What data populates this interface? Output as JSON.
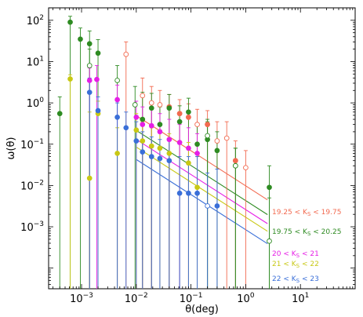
{
  "chart_data": {
    "type": "scatter",
    "xlabel": "θ(deg)",
    "ylabel": "ω(θ)",
    "xscale": "log",
    "yscale": "log",
    "xlim": [
      0.00025,
      100
    ],
    "ylim": [
      3.16e-05,
      200
    ],
    "x_ticks": [
      {
        "value": 0.001,
        "label": "10^-3"
      },
      {
        "value": 0.01,
        "label": "10^-2"
      },
      {
        "value": 0.1,
        "label": "10^-1"
      },
      {
        "value": 1,
        "label": "10^0"
      },
      {
        "value": 10,
        "label": "10^1"
      }
    ],
    "y_ticks": [
      {
        "value": 0.001,
        "label": "10^-3"
      },
      {
        "value": 0.01,
        "label": "10^-2"
      },
      {
        "value": 0.1,
        "label": "10^-1"
      },
      {
        "value": 1,
        "label": "10^0"
      },
      {
        "value": 10,
        "label": "10^1"
      },
      {
        "value": 100,
        "label": "10^2"
      }
    ],
    "legend_position": "lower-right, next to the fitted lines",
    "series": [
      {
        "name": "19.25 < K_S < 19.75",
        "color": "#f26a50",
        "marker": "open-circle",
        "points": [
          {
            "x": 0.0065,
            "y": 15,
            "err_up": 30
          },
          {
            "x": 0.013,
            "y": 1.5,
            "err_up": 4
          },
          {
            "x": 0.019,
            "y": 1.0,
            "err_up": 2.5
          },
          {
            "x": 0.027,
            "y": 0.9,
            "err_up": 2.0
          },
          {
            "x": 0.04,
            "y": 0.8,
            "err_up": 1.6
          },
          {
            "x": 0.062,
            "y": 0.55,
            "err_up": 1.2
          },
          {
            "x": 0.09,
            "y": 0.45,
            "err_up": 0.95
          },
          {
            "x": 0.13,
            "y": 0.3,
            "err_up": 0.7
          },
          {
            "x": 0.2,
            "y": 0.3,
            "err_up": 0.65
          },
          {
            "x": 0.3,
            "y": 0.12,
            "err_up": 0.35
          },
          {
            "x": 0.45,
            "y": 0.14,
            "err_up": 0.35
          },
          {
            "x": 0.65,
            "y": 0.04,
            "err_up": 0.12
          },
          {
            "x": 1.0,
            "y": 0.027,
            "err_up": 0.07
          }
        ],
        "filled_points": [
          {
            "x": 0.04,
            "y": 0.8
          },
          {
            "x": 0.062,
            "y": 0.55
          },
          {
            "x": 0.09,
            "y": 0.45
          },
          {
            "x": 0.2,
            "y": 0.3
          },
          {
            "x": 0.65,
            "y": 0.04
          }
        ],
        "fit": {
          "x_start": 0.01,
          "x_end": 2.5,
          "amplitude": 0.0098,
          "slope": -0.85
        }
      },
      {
        "name": "19.75 < K_S < 20.25",
        "color": "#2e8b22",
        "marker": "filled-circle",
        "points": [
          {
            "x": 0.0004,
            "y": 0.55,
            "err_up": 1.4
          },
          {
            "x": 0.00062,
            "y": 90,
            "err_up": 125
          },
          {
            "x": 0.00095,
            "y": 35,
            "err_up": 65
          },
          {
            "x": 0.0014,
            "y": 27,
            "err_up": 55
          },
          {
            "x": 0.002,
            "y": 16,
            "err_up": 34
          },
          {
            "x": 0.013,
            "y": 0.4,
            "err_up": 1.8
          },
          {
            "x": 0.019,
            "y": 0.75,
            "err_up": 1.7
          },
          {
            "x": 0.027,
            "y": 0.3,
            "err_up": 0.8
          },
          {
            "x": 0.04,
            "y": 0.75,
            "err_up": 1.6
          },
          {
            "x": 0.062,
            "y": 0.35,
            "err_up": 0.85
          },
          {
            "x": 0.09,
            "y": 0.6,
            "err_up": 1.3
          },
          {
            "x": 0.13,
            "y": 0.1,
            "err_up": 0.3
          },
          {
            "x": 0.2,
            "y": 0.13,
            "err_up": 0.35
          },
          {
            "x": 0.3,
            "y": 0.07,
            "err_up": 0.2
          },
          {
            "x": 0.65,
            "y": 0.03,
            "err_up": 0.08
          },
          {
            "x": 2.7,
            "y": 0.009,
            "err_up": 0.03
          }
        ],
        "open_points": [
          {
            "x": 0.0014,
            "y": 8,
            "err_up": 20
          },
          {
            "x": 0.0045,
            "y": 3.5,
            "err_up": 8
          },
          {
            "x": 0.0095,
            "y": 0.9,
            "err_up": 2.5
          },
          {
            "x": 0.2,
            "y": 0.16,
            "err_up": 0.4
          },
          {
            "x": 0.65,
            "y": 0.03,
            "err_up": 0.08
          },
          {
            "x": 2.7,
            "y": 0.00045,
            "err_up": 0.005
          }
        ],
        "fit": {
          "x_start": 0.01,
          "x_end": 2.5,
          "amplitude": 0.0043,
          "slope": -0.85
        }
      },
      {
        "name": "20 < K_S < 21",
        "color": "#e61ee6",
        "marker": "filled-circle",
        "points": [
          {
            "x": 0.0014,
            "y": 3.5,
            "err_up": 7
          },
          {
            "x": 0.0019,
            "y": 3.7,
            "err_up": 8
          },
          {
            "x": 0.0045,
            "y": 1.2,
            "err_up": 2.7
          },
          {
            "x": 0.01,
            "y": 0.45,
            "err_up": 1.1
          },
          {
            "x": 0.013,
            "y": 0.3,
            "err_up": 0.8
          },
          {
            "x": 0.019,
            "y": 0.28,
            "err_up": 0.7
          },
          {
            "x": 0.027,
            "y": 0.2,
            "err_up": 0.55
          },
          {
            "x": 0.04,
            "y": 0.13,
            "err_up": 0.4
          },
          {
            "x": 0.062,
            "y": 0.11,
            "err_up": 0.3
          },
          {
            "x": 0.09,
            "y": 0.08,
            "err_up": 0.25
          },
          {
            "x": 0.13,
            "y": 0.06,
            "err_up": 0.18
          }
        ],
        "fit": {
          "x_start": 0.01,
          "x_end": 2.5,
          "amplitude": 0.0026,
          "slope": -0.85
        }
      },
      {
        "name": "21 < K_S < 22",
        "color": "#c8c814",
        "marker": "filled-circle",
        "points": [
          {
            "x": 0.00062,
            "y": 3.8,
            "err_up": 4.8
          },
          {
            "x": 0.0014,
            "y": 0.015,
            "err_up": 0.6
          },
          {
            "x": 0.002,
            "y": 0.55,
            "err_up": 1.1
          },
          {
            "x": 0.0045,
            "y": 0.06,
            "err_up": 0.25
          },
          {
            "x": 0.01,
            "y": 0.22,
            "err_up": 0.55
          },
          {
            "x": 0.013,
            "y": 0.12,
            "err_up": 0.35
          },
          {
            "x": 0.019,
            "y": 0.09,
            "err_up": 0.25
          },
          {
            "x": 0.027,
            "y": 0.08,
            "err_up": 0.22
          },
          {
            "x": 0.04,
            "y": 0.06,
            "err_up": 0.18
          },
          {
            "x": 0.09,
            "y": 0.035,
            "err_up": 0.11
          },
          {
            "x": 0.13,
            "y": 0.009,
            "err_up": 0.05
          }
        ],
        "fit": {
          "x_start": 0.01,
          "x_end": 2.5,
          "amplitude": 0.0017,
          "slope": -0.85
        }
      },
      {
        "name": "22 < K_S < 23",
        "color": "#3a6fd8",
        "marker": "filled-circle",
        "points": [
          {
            "x": 0.0014,
            "y": 1.8,
            "err_up": 4
          },
          {
            "x": 0.002,
            "y": 0.65,
            "err_up": 1.4
          },
          {
            "x": 0.0045,
            "y": 0.45,
            "err_up": 1.0
          },
          {
            "x": 0.0065,
            "y": 0.25,
            "err_up": 0.6
          },
          {
            "x": 0.01,
            "y": 0.12,
            "err_up": 0.35
          },
          {
            "x": 0.013,
            "y": 0.065,
            "err_up": 0.2
          },
          {
            "x": 0.019,
            "y": 0.05,
            "err_up": 0.15
          },
          {
            "x": 0.027,
            "y": 0.045,
            "err_up": 0.13
          },
          {
            "x": 0.04,
            "y": 0.04,
            "err_up": 0.12
          },
          {
            "x": 0.062,
            "y": 0.0065,
            "err_up": 0.05
          },
          {
            "x": 0.09,
            "y": 0.0065,
            "err_up": 0.05
          },
          {
            "x": 0.13,
            "y": 0.0065,
            "err_up": 0.05
          },
          {
            "x": 0.3,
            "y": 0.0032,
            "err_up": 0.025
          }
        ],
        "open_points": [
          {
            "x": 0.2,
            "y": 0.0032,
            "err_up": 0.02
          }
        ],
        "fit": {
          "x_start": 0.01,
          "x_end": 2.5,
          "amplitude": 0.00085,
          "slope": -0.85
        }
      }
    ]
  }
}
